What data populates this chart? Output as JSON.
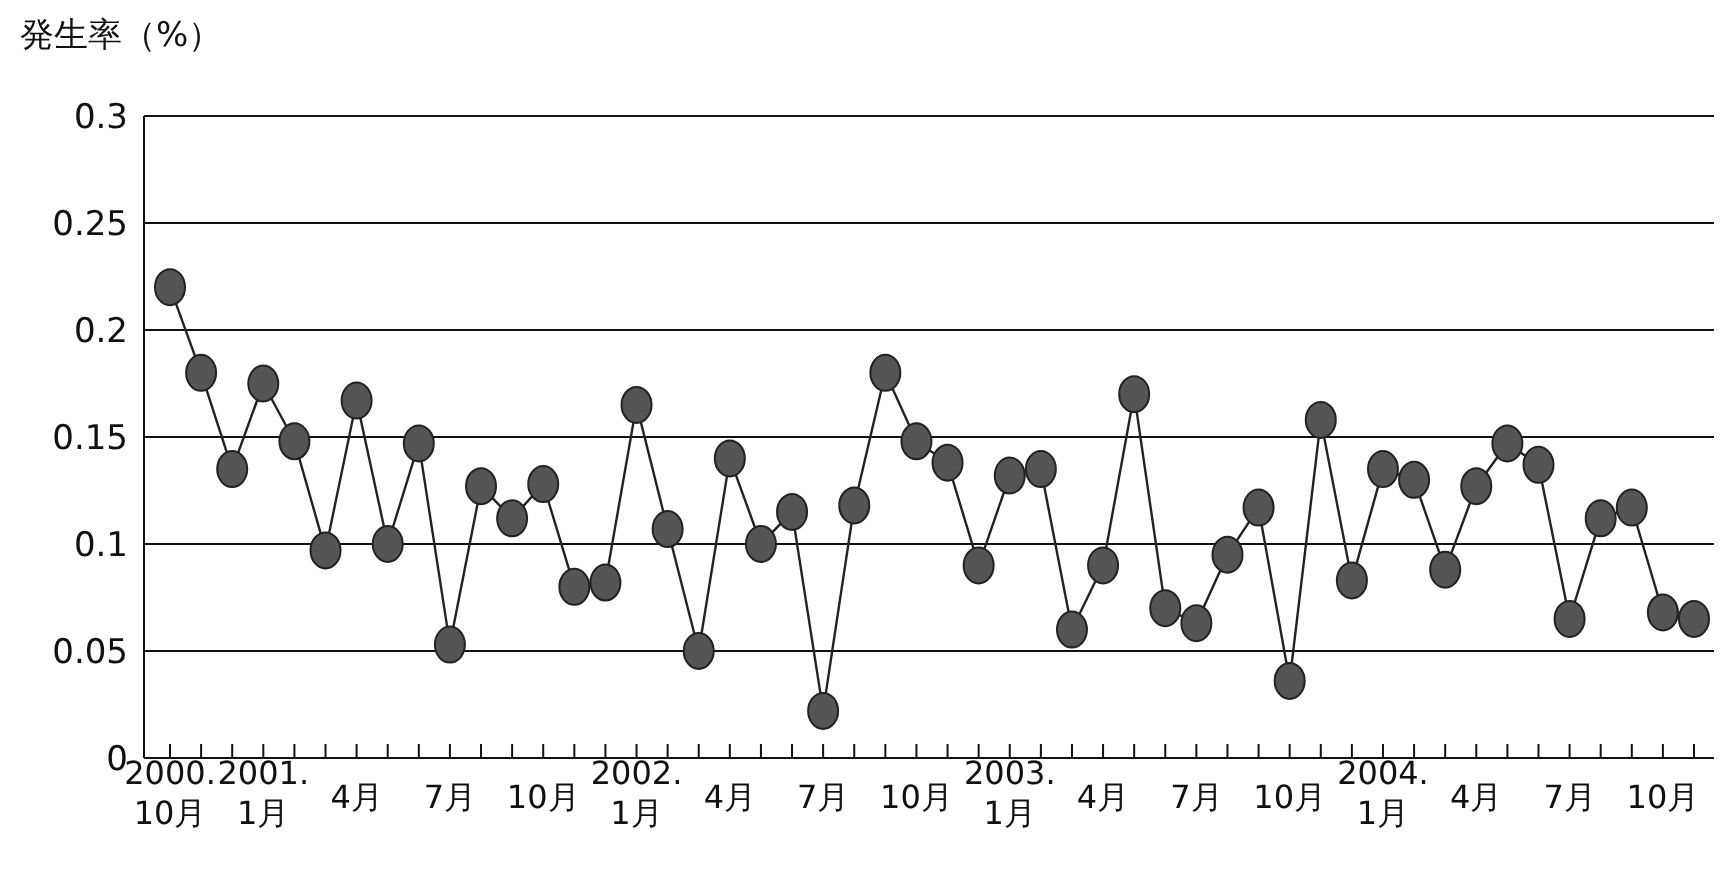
{
  "chart_data": {
    "type": "line",
    "ylabel": "発生率（%）",
    "categories": [
      "2000.\n10月",
      null,
      null,
      "2001.\n1月",
      null,
      null,
      "4月",
      null,
      null,
      "7月",
      null,
      null,
      "10月",
      null,
      null,
      "2002.\n1月",
      null,
      null,
      "4月",
      null,
      null,
      "7月",
      null,
      null,
      "10月",
      null,
      null,
      "2003.\n1月",
      null,
      null,
      "4月",
      null,
      null,
      "7月",
      null,
      null,
      "10月",
      null,
      null,
      "2004.\n1月",
      null,
      null,
      "4月",
      null,
      null,
      "7月",
      null,
      null,
      "10月",
      null
    ],
    "series": [
      {
        "color": "#555555",
        "values": [
          0.22,
          0.18,
          0.135,
          0.175,
          0.148,
          0.097,
          0.167,
          0.1,
          0.147,
          0.053,
          0.127,
          0.112,
          0.128,
          0.08,
          0.082,
          0.165,
          0.107,
          0.05,
          0.14,
          0.1,
          0.115,
          0.022,
          0.118,
          0.18,
          0.148,
          0.138,
          0.09,
          0.132,
          0.135,
          0.06,
          0.09,
          0.17,
          0.07,
          0.063,
          0.095,
          0.117,
          0.036,
          0.158,
          0.083,
          0.135,
          0.13,
          0.088,
          0.127,
          0.147,
          0.137,
          0.065,
          0.112,
          0.117,
          0.068,
          0.065
        ]
      }
    ],
    "ylim": [
      0,
      0.3
    ],
    "yticks": [
      0,
      0.05,
      0.1,
      0.15,
      0.2,
      0.25,
      0.3
    ],
    "grid": "y",
    "marker": "circle",
    "line_style": "solid"
  }
}
